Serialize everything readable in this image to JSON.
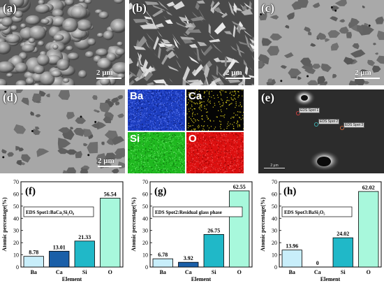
{
  "panels": {
    "a": {
      "label": "(a)",
      "scale": "2 μm"
    },
    "b": {
      "label": "(b)",
      "scale": "2 μm"
    },
    "c": {
      "label": "(c)",
      "scale": "2 μm"
    },
    "d": {
      "label": "(d)",
      "scale": "2 μm"
    },
    "e": {
      "label": "(e)",
      "scale": "2 μm",
      "spots": [
        "EDS Spot 1",
        "EDS Spot 2",
        "EDS Spot 3"
      ]
    }
  },
  "maps": [
    {
      "element": "Ba",
      "color": "#1f3fd0"
    },
    {
      "element": "Ca",
      "color": "#d8d000"
    },
    {
      "element": "Si",
      "color": "#22c022"
    },
    {
      "element": "O",
      "color": "#e01010"
    }
  ],
  "chart_data": [
    {
      "type": "bar",
      "panel_label": "(f)",
      "legend": "EDS Spot1:BaCa₂Si₂O₈",
      "categories": [
        "Ba",
        "Ca",
        "Si",
        "O"
      ],
      "values": [
        8.78,
        13.01,
        21.33,
        56.54
      ],
      "value_labels": [
        "8.78",
        "13.01",
        "21.33",
        "56.54"
      ],
      "xlabel": "Element",
      "ylabel": "Atomic percentage(%)",
      "ylim": [
        0,
        70
      ],
      "yticks": [
        "0",
        "10",
        "20",
        "30",
        "40",
        "50",
        "60",
        "70"
      ]
    },
    {
      "type": "bar",
      "panel_label": "(g)",
      "legend": "EDS Spot2:Residual glass phase",
      "categories": [
        "Ba",
        "Ca",
        "Si",
        "O"
      ],
      "values": [
        6.78,
        3.92,
        26.75,
        62.55
      ],
      "value_labels": [
        "6.78",
        "3.92",
        "26.75",
        "62.55"
      ],
      "xlabel": "Element",
      "ylabel": "Atomic percentage(%)",
      "ylim": [
        0,
        70
      ],
      "yticks": [
        "0",
        "10",
        "20",
        "30",
        "40",
        "50",
        "60",
        "70"
      ]
    },
    {
      "type": "bar",
      "panel_label": "(h)",
      "legend": "EDS Spot3:BaSi₂O₅",
      "categories": [
        "Ba",
        "Ca",
        "Si",
        "O"
      ],
      "values": [
        13.96,
        0,
        24.02,
        62.02
      ],
      "value_labels": [
        "13.96",
        "0",
        "24.02",
        "62.02"
      ],
      "xlabel": "Element",
      "ylabel": "Atomic percentage(%)",
      "ylim": [
        0,
        70
      ],
      "yticks": [
        "0",
        "10",
        "20",
        "30",
        "40",
        "50",
        "60",
        "70"
      ]
    }
  ],
  "bar_colors": [
    "#c8eefa",
    "#1a5fa8",
    "#20b8c8",
    "#a8f8dc"
  ]
}
